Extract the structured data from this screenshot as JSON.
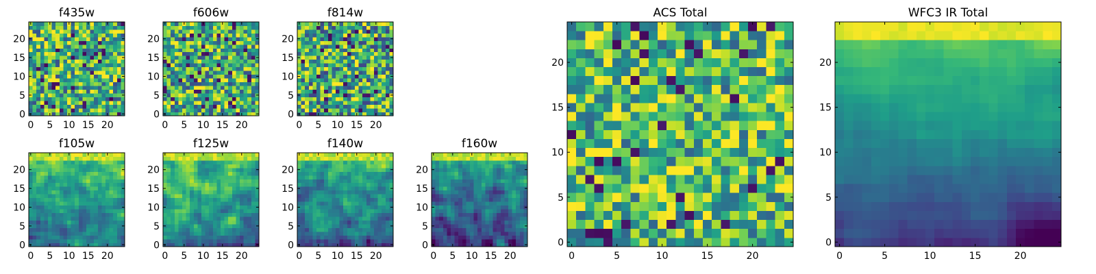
{
  "colormap": "viridis",
  "chart_data": [
    {
      "type": "heatmap",
      "title": "f435w",
      "grid": false,
      "xlim": [
        -0.5,
        24.5
      ],
      "ylim": [
        -0.5,
        24.5
      ],
      "xticks": [
        0,
        5,
        10,
        15,
        20
      ],
      "yticks": [
        0,
        5,
        10,
        15,
        20
      ],
      "cells": 25,
      "pattern": "noise",
      "level": 0.62,
      "spread": 0.42,
      "seed": 11
    },
    {
      "type": "heatmap",
      "title": "f606w",
      "grid": false,
      "xlim": [
        -0.5,
        24.5
      ],
      "ylim": [
        -0.5,
        24.5
      ],
      "xticks": [
        0,
        5,
        10,
        15,
        20
      ],
      "yticks": [
        0,
        5,
        10,
        15,
        20
      ],
      "cells": 25,
      "pattern": "noise",
      "level": 0.62,
      "spread": 0.42,
      "seed": 23
    },
    {
      "type": "heatmap",
      "title": "f814w",
      "grid": false,
      "xlim": [
        -0.5,
        24.5
      ],
      "ylim": [
        -0.5,
        24.5
      ],
      "xticks": [
        0,
        5,
        10,
        15,
        20
      ],
      "yticks": [
        0,
        5,
        10,
        15,
        20
      ],
      "cells": 25,
      "pattern": "noise",
      "level": 0.6,
      "spread": 0.44,
      "seed": 37
    },
    {
      "type": "heatmap",
      "title": "f105w",
      "grid": false,
      "xlim": [
        -0.5,
        24.5
      ],
      "ylim": [
        -0.5,
        24.5
      ],
      "xticks": [
        0,
        5,
        10,
        15,
        20
      ],
      "yticks": [
        0,
        5,
        10,
        15,
        20
      ],
      "cells": 25,
      "pattern": "gradient",
      "level": 0.55,
      "spread": 0.32,
      "seed": 41
    },
    {
      "type": "heatmap",
      "title": "f125w",
      "grid": false,
      "xlim": [
        -0.5,
        24.5
      ],
      "ylim": [
        -0.5,
        24.5
      ],
      "xticks": [
        0,
        5,
        10,
        15,
        20
      ],
      "yticks": [
        0,
        5,
        10,
        15,
        20
      ],
      "cells": 25,
      "pattern": "gradient",
      "level": 0.58,
      "spread": 0.34,
      "seed": 53
    },
    {
      "type": "heatmap",
      "title": "f140w",
      "grid": false,
      "xlim": [
        -0.5,
        24.5
      ],
      "ylim": [
        -0.5,
        24.5
      ],
      "xticks": [
        0,
        5,
        10,
        15,
        20
      ],
      "yticks": [
        0,
        5,
        10,
        15,
        20
      ],
      "cells": 25,
      "pattern": "gradient",
      "level": 0.5,
      "spread": 0.34,
      "seed": 67
    },
    {
      "type": "heatmap",
      "title": "f160w",
      "grid": false,
      "xlim": [
        -0.5,
        24.5
      ],
      "ylim": [
        -0.5,
        24.5
      ],
      "xticks": [
        0,
        5,
        10,
        15,
        20
      ],
      "yticks": [
        0,
        5,
        10,
        15,
        20
      ],
      "cells": 25,
      "pattern": "gradient",
      "level": 0.4,
      "spread": 0.36,
      "seed": 79
    },
    {
      "type": "heatmap",
      "title": "ACS Total",
      "grid": false,
      "xlim": [
        -0.5,
        24.5
      ],
      "ylim": [
        -0.5,
        24.5
      ],
      "xticks": [
        0,
        5,
        10,
        15,
        20
      ],
      "yticks": [
        0,
        5,
        10,
        15,
        20
      ],
      "cells": 25,
      "pattern": "noise",
      "level": 0.66,
      "spread": 0.38,
      "seed": 97
    },
    {
      "type": "heatmap",
      "title": "WFC3 IR Total",
      "grid": false,
      "xlim": [
        -0.5,
        24.5
      ],
      "ylim": [
        -0.5,
        24.5
      ],
      "xticks": [
        0,
        5,
        10,
        15,
        20
      ],
      "yticks": [
        0,
        5,
        10,
        15,
        20
      ],
      "cells": 25,
      "pattern": "smooth",
      "level": 0.48,
      "spread": 0.22,
      "seed": 113
    }
  ]
}
